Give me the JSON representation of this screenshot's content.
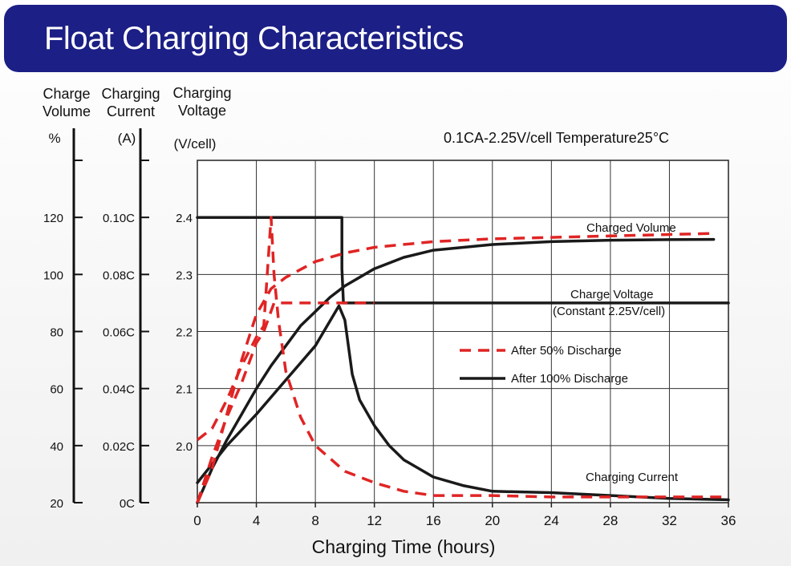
{
  "header": {
    "title": "Float Charging Characteristics"
  },
  "chart_data": {
    "type": "line",
    "conditions": "0.1CA-2.25V/cell   Temperature25°C",
    "xlabel": "Charging Time (hours)",
    "xlim": [
      0,
      36
    ],
    "x_ticks": [
      "0",
      "4",
      "8",
      "12",
      "16",
      "20",
      "24",
      "28",
      "32",
      "36"
    ],
    "y_axes": [
      {
        "id": "volume",
        "title_lines": [
          "Charge",
          "Volume"
        ],
        "unit": "%",
        "range": [
          20,
          140
        ],
        "tick_labels": [
          {
            "value": 20,
            "label": "20"
          },
          {
            "value": 40,
            "label": "40"
          },
          {
            "value": 60,
            "label": "60"
          },
          {
            "value": 80,
            "label": "80"
          },
          {
            "value": 100,
            "label": "100"
          },
          {
            "value": 120,
            "label": "120"
          }
        ],
        "extra_ticks": [
          140
        ]
      },
      {
        "id": "current",
        "title_lines": [
          "Charging",
          "Current"
        ],
        "unit": "(A)",
        "range": [
          0,
          0.12
        ],
        "tick_labels": [
          {
            "value": 0,
            "label": "0C"
          },
          {
            "value": 0.02,
            "label": "0.02C"
          },
          {
            "value": 0.04,
            "label": "0.04C"
          },
          {
            "value": 0.06,
            "label": "0.06C"
          },
          {
            "value": 0.08,
            "label": "0.08C"
          },
          {
            "value": 0.1,
            "label": "0.10C"
          }
        ],
        "extra_ticks": [
          0.12
        ]
      },
      {
        "id": "voltage",
        "title_lines": [
          "Charging",
          "Voltage"
        ],
        "unit": "(V/cell)",
        "range": [
          1.9,
          2.5
        ],
        "tick_labels": [
          {
            "value": 2.0,
            "label": "2.0"
          },
          {
            "value": 2.1,
            "label": "2.1"
          },
          {
            "value": 2.2,
            "label": "2.2"
          },
          {
            "value": 2.3,
            "label": "2.3"
          },
          {
            "value": 2.4,
            "label": "2.4"
          }
        ]
      }
    ],
    "grid": true,
    "legend": [
      {
        "name": "After 50% Discharge",
        "style": "dashed",
        "color": "#e02424"
      },
      {
        "name": "After 100%  Discharge",
        "style": "solid",
        "color": "#1a1a1a"
      }
    ],
    "annotations": [
      {
        "text": "Charged Volume"
      },
      {
        "text": "Charge Voltage"
      },
      {
        "text": "(Constant 2.25V/cell)"
      },
      {
        "text": "Charging Current"
      }
    ],
    "series": [
      {
        "group": "After 100%  Discharge",
        "quantity": "Charge Voltage",
        "axis": "voltage",
        "x": [
          0,
          9.8,
          9.8,
          9.9,
          12,
          20,
          36
        ],
        "y": [
          2.4,
          2.4,
          2.31,
          2.25,
          2.25,
          2.25,
          2.25
        ]
      },
      {
        "group": "After 100%  Discharge",
        "quantity": "Charged Volume",
        "axis": "volume",
        "x": [
          0,
          1,
          2,
          3,
          4,
          5,
          6,
          7,
          8,
          9,
          10,
          12,
          14,
          16,
          20,
          24,
          28,
          32,
          35
        ],
        "y": [
          20,
          32,
          42,
          51,
          60,
          68,
          75,
          82,
          87,
          92,
          96,
          102,
          106,
          108.5,
          110.5,
          111.5,
          112,
          112.2,
          112.3
        ]
      },
      {
        "group": "After 100%  Discharge",
        "quantity": "Charging Current",
        "axis": "current",
        "x": [
          0,
          2,
          4,
          6,
          8,
          9.6,
          10,
          10.5,
          11,
          12,
          13,
          14,
          16,
          18,
          20,
          24,
          28,
          32,
          36
        ],
        "y": [
          0.007,
          0.02,
          0.031,
          0.043,
          0.055,
          0.069,
          0.064,
          0.045,
          0.036,
          0.027,
          0.02,
          0.015,
          0.009,
          0.006,
          0.004,
          0.0035,
          0.0025,
          0.0015,
          0.001
        ]
      },
      {
        "group": "After 50% Discharge",
        "quantity": "Charge Voltage",
        "axis": "voltage",
        "x": [
          0,
          1,
          2,
          3,
          4,
          4.5,
          5.2,
          6,
          8,
          10,
          12
        ],
        "y": [
          1.9,
          1.98,
          2.05,
          2.11,
          2.18,
          2.2,
          2.25,
          2.25,
          2.25,
          2.25,
          2.25
        ]
      },
      {
        "group": "After 50% Discharge",
        "quantity": "Charged Volume",
        "axis": "volume",
        "x": [
          0,
          1,
          2,
          3,
          4,
          5,
          6,
          8,
          10,
          12,
          16,
          20,
          24,
          28,
          32,
          35
        ],
        "y": [
          20,
          32,
          51,
          70,
          86,
          95,
          99,
          104.5,
          107.5,
          109.5,
          111.5,
          112.5,
          113,
          113.5,
          114,
          114.4
        ]
      },
      {
        "group": "After 50% Discharge",
        "quantity": "Charging Current",
        "axis": "current",
        "x": [
          0,
          1,
          2,
          3,
          4,
          4.5,
          5,
          5.2,
          5.5,
          6,
          7,
          8,
          10,
          12,
          14,
          16,
          20,
          24,
          28,
          32,
          36
        ],
        "y": [
          0.022,
          0.026,
          0.036,
          0.048,
          0.058,
          0.062,
          0.1,
          0.08,
          0.064,
          0.046,
          0.03,
          0.02,
          0.011,
          0.007,
          0.004,
          0.0025,
          0.0025,
          0.002,
          0.002,
          0.002,
          0.002
        ]
      }
    ]
  }
}
